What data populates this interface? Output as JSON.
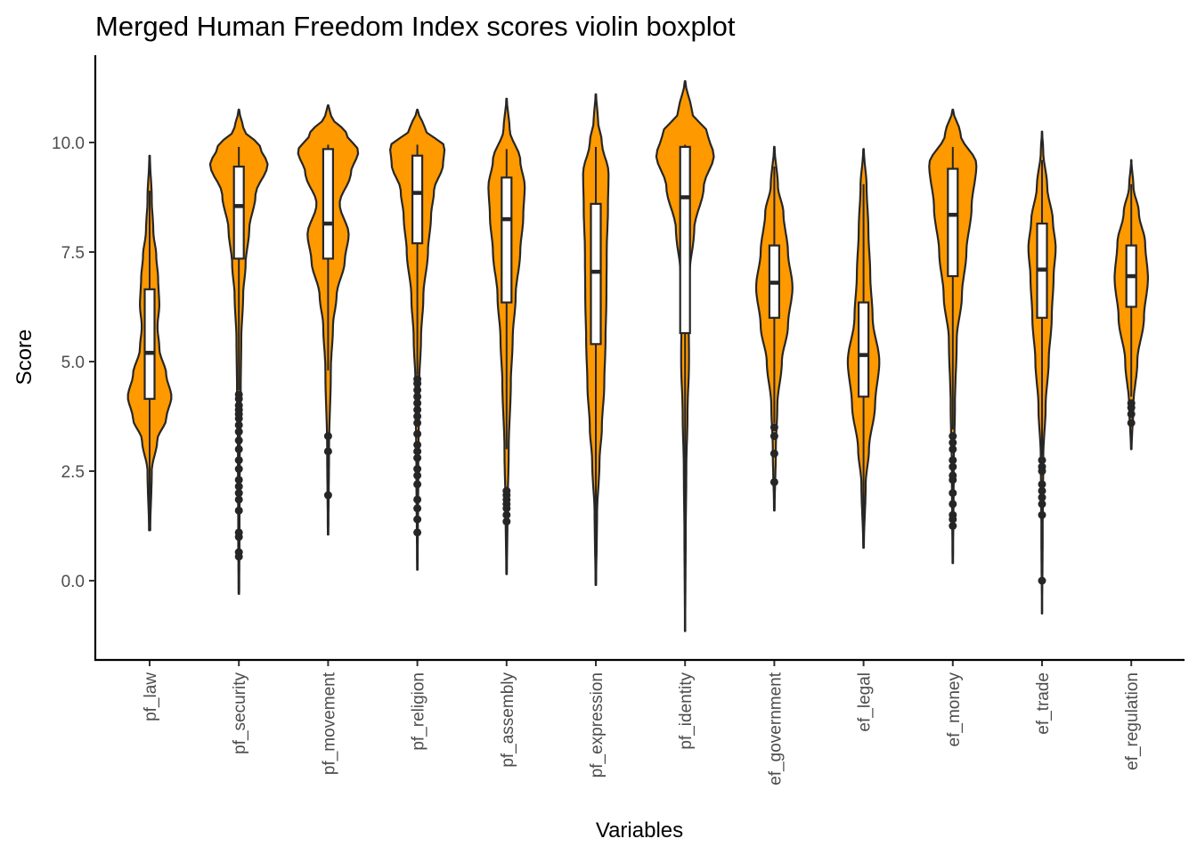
{
  "chart_data": {
    "type": "violin",
    "title": "Merged Human Freedom Index scores violin boxplot",
    "xlabel": "Variables",
    "ylabel": "Score",
    "ylim": [
      -1.75,
      12.0
    ],
    "yticks": [
      "0.0",
      "2.5",
      "5.0",
      "7.5",
      "10.0"
    ],
    "ytick_values": [
      0,
      2.5,
      5,
      7.5,
      10
    ],
    "grid": false,
    "legend": "none",
    "colors": {
      "fill": "#ff9900",
      "stroke": "#262626",
      "box_fill": "#ffffff"
    },
    "categories": [
      "pf_law",
      "pf_security",
      "pf_movement",
      "pf_religion",
      "pf_assembly",
      "pf_expression",
      "pf_identity",
      "ef_government",
      "ef_legal",
      "ef_money",
      "ef_trade",
      "ef_regulation"
    ],
    "series": [
      {
        "category": "pf_law",
        "range": [
          1.15,
          9.7
        ],
        "box": {
          "q1": 4.15,
          "median": 5.2,
          "q3": 6.65,
          "whisker_low": 1.15,
          "whisker_high": 8.9
        },
        "outliers": [],
        "density": [
          [
            1.15,
            0.02
          ],
          [
            2.5,
            0.07
          ],
          [
            3.2,
            0.25
          ],
          [
            3.7,
            0.55
          ],
          [
            4.2,
            0.72
          ],
          [
            4.7,
            0.55
          ],
          [
            5.3,
            0.32
          ],
          [
            5.8,
            0.26
          ],
          [
            6.3,
            0.32
          ],
          [
            6.9,
            0.28
          ],
          [
            7.4,
            0.22
          ],
          [
            8.0,
            0.12
          ],
          [
            8.7,
            0.07
          ],
          [
            9.7,
            0.01
          ]
        ]
      },
      {
        "category": "pf_security",
        "range": [
          -0.3,
          10.75
        ],
        "box": {
          "q1": 7.35,
          "median": 8.55,
          "q3": 9.45,
          "whisker_low": 4.35,
          "whisker_high": 9.9
        },
        "outliers": [
          4.25,
          4.15,
          4.0,
          3.9,
          3.8,
          3.7,
          3.55,
          3.4,
          3.2,
          3.0,
          2.75,
          2.55,
          2.3,
          2.15,
          2.0,
          1.85,
          1.6,
          1.1,
          1.0,
          0.65,
          0.55
        ],
        "density": [
          [
            -0.3,
            0.01
          ],
          [
            1.0,
            0.02
          ],
          [
            3.0,
            0.03
          ],
          [
            4.3,
            0.06
          ],
          [
            5.5,
            0.08
          ],
          [
            6.5,
            0.14
          ],
          [
            7.2,
            0.22
          ],
          [
            8.0,
            0.34
          ],
          [
            8.8,
            0.55
          ],
          [
            9.5,
            0.95
          ],
          [
            9.9,
            0.7
          ],
          [
            10.3,
            0.15
          ],
          [
            10.75,
            0.01
          ]
        ]
      },
      {
        "category": "pf_movement",
        "range": [
          1.05,
          10.85
        ],
        "box": {
          "q1": 7.35,
          "median": 8.15,
          "q3": 9.85,
          "whisker_low": 4.8,
          "whisker_high": 9.95
        },
        "outliers": [
          3.3,
          2.95,
          1.95
        ],
        "density": [
          [
            1.05,
            0.01
          ],
          [
            3.0,
            0.03
          ],
          [
            4.8,
            0.09
          ],
          [
            5.8,
            0.16
          ],
          [
            6.5,
            0.28
          ],
          [
            7.3,
            0.55
          ],
          [
            7.9,
            0.68
          ],
          [
            8.6,
            0.38
          ],
          [
            9.3,
            0.75
          ],
          [
            9.8,
            1.0
          ],
          [
            10.2,
            0.6
          ],
          [
            10.6,
            0.1
          ],
          [
            10.85,
            0.01
          ]
        ]
      },
      {
        "category": "pf_religion",
        "range": [
          0.25,
          10.75
        ],
        "box": {
          "q1": 7.7,
          "median": 8.85,
          "q3": 9.7,
          "whisker_low": 4.7,
          "whisker_high": 9.95
        },
        "outliers": [
          4.6,
          4.5,
          4.35,
          4.2,
          4.05,
          3.9,
          3.75,
          3.6,
          3.35,
          3.1,
          2.95,
          2.8,
          2.55,
          2.4,
          2.2,
          1.85,
          1.65,
          1.4,
          1.1
        ],
        "density": [
          [
            0.25,
            0.01
          ],
          [
            2.5,
            0.03
          ],
          [
            4.5,
            0.06
          ],
          [
            5.5,
            0.12
          ],
          [
            6.5,
            0.2
          ],
          [
            7.5,
            0.35
          ],
          [
            8.3,
            0.45
          ],
          [
            8.9,
            0.55
          ],
          [
            9.5,
            0.85
          ],
          [
            9.9,
            0.9
          ],
          [
            10.3,
            0.25
          ],
          [
            10.75,
            0.01
          ]
        ]
      },
      {
        "category": "pf_assembly",
        "range": [
          0.15,
          11.0
        ],
        "box": {
          "q1": 6.35,
          "median": 8.25,
          "q3": 9.2,
          "whisker_low": 3.0,
          "whisker_high": 9.85
        },
        "outliers": [
          2.05,
          1.95,
          1.85,
          1.75,
          1.65,
          1.5,
          1.35
        ],
        "density": [
          [
            0.15,
            0.01
          ],
          [
            1.5,
            0.03
          ],
          [
            3.0,
            0.07
          ],
          [
            4.5,
            0.14
          ],
          [
            5.5,
            0.2
          ],
          [
            6.5,
            0.3
          ],
          [
            7.5,
            0.45
          ],
          [
            8.3,
            0.55
          ],
          [
            9.0,
            0.6
          ],
          [
            9.6,
            0.45
          ],
          [
            10.3,
            0.1
          ],
          [
            11.0,
            0.01
          ]
        ]
      },
      {
        "category": "pf_expression",
        "range": [
          -0.1,
          11.1
        ],
        "box": {
          "q1": 5.4,
          "median": 7.05,
          "q3": 8.6,
          "whisker_low": 0.5,
          "whisker_high": 9.9
        },
        "outliers": [],
        "density": [
          [
            -0.1,
            0.01
          ],
          [
            1.5,
            0.04
          ],
          [
            2.7,
            0.12
          ],
          [
            3.5,
            0.2
          ],
          [
            4.5,
            0.28
          ],
          [
            5.5,
            0.32
          ],
          [
            6.5,
            0.35
          ],
          [
            7.5,
            0.36
          ],
          [
            8.5,
            0.4
          ],
          [
            9.3,
            0.42
          ],
          [
            10.0,
            0.2
          ],
          [
            10.5,
            0.07
          ],
          [
            11.1,
            0.01
          ]
        ]
      },
      {
        "category": "pf_identity",
        "range": [
          -1.15,
          11.4
        ],
        "box": {
          "q1": 5.65,
          "median": 8.75,
          "q3": 9.9,
          "whisker_low": 0.7,
          "whisker_high": 9.95
        },
        "outliers": [],
        "density": [
          [
            -1.15,
            0.005
          ],
          [
            1.0,
            0.02
          ],
          [
            2.5,
            0.04
          ],
          [
            3.8,
            0.08
          ],
          [
            5.0,
            0.13
          ],
          [
            6.0,
            0.12
          ],
          [
            7.0,
            0.15
          ],
          [
            8.0,
            0.3
          ],
          [
            9.0,
            0.62
          ],
          [
            9.7,
            0.95
          ],
          [
            10.2,
            0.75
          ],
          [
            10.7,
            0.22
          ],
          [
            11.4,
            0.01
          ]
        ]
      },
      {
        "category": "ef_government",
        "range": [
          1.6,
          9.9
        ],
        "box": {
          "q1": 6.0,
          "median": 6.8,
          "q3": 7.65,
          "whisker_low": 3.6,
          "whisker_high": 9.45
        },
        "outliers": [
          3.5,
          3.3,
          2.9,
          2.25
        ],
        "density": [
          [
            1.6,
            0.01
          ],
          [
            3.0,
            0.05
          ],
          [
            4.0,
            0.1
          ],
          [
            5.0,
            0.25
          ],
          [
            5.8,
            0.45
          ],
          [
            6.7,
            0.6
          ],
          [
            7.5,
            0.45
          ],
          [
            8.4,
            0.3
          ],
          [
            9.0,
            0.12
          ],
          [
            9.9,
            0.01
          ]
        ]
      },
      {
        "category": "ef_legal",
        "range": [
          0.75,
          9.85
        ],
        "box": {
          "q1": 4.2,
          "median": 5.15,
          "q3": 6.35,
          "whisker_low": 0.85,
          "whisker_high": 9.05
        },
        "outliers": [],
        "density": [
          [
            0.75,
            0.01
          ],
          [
            2.2,
            0.07
          ],
          [
            3.0,
            0.18
          ],
          [
            4.0,
            0.38
          ],
          [
            5.0,
            0.52
          ],
          [
            6.0,
            0.3
          ],
          [
            7.0,
            0.22
          ],
          [
            8.0,
            0.16
          ],
          [
            9.0,
            0.1
          ],
          [
            9.85,
            0.01
          ]
        ]
      },
      {
        "category": "ef_money",
        "range": [
          0.4,
          10.75
        ],
        "box": {
          "q1": 6.95,
          "median": 8.35,
          "q3": 9.4,
          "whisker_low": 3.45,
          "whisker_high": 9.9
        },
        "outliers": [
          3.3,
          3.15,
          3.0,
          2.75,
          2.6,
          2.4,
          2.3,
          2.0,
          1.75,
          1.5,
          1.4,
          1.25
        ],
        "density": [
          [
            0.4,
            0.01
          ],
          [
            2.5,
            0.03
          ],
          [
            4.0,
            0.07
          ],
          [
            5.5,
            0.13
          ],
          [
            6.5,
            0.3
          ],
          [
            7.5,
            0.45
          ],
          [
            8.5,
            0.62
          ],
          [
            9.5,
            0.78
          ],
          [
            10.2,
            0.25
          ],
          [
            10.75,
            0.01
          ]
        ]
      },
      {
        "category": "ef_trade",
        "range": [
          -0.75,
          10.25
        ],
        "box": {
          "q1": 6.0,
          "median": 7.1,
          "q3": 8.15,
          "whisker_low": 2.85,
          "whisker_high": 9.6
        },
        "outliers": [
          2.75,
          2.6,
          2.5,
          2.2,
          2.05,
          1.9,
          1.75,
          1.5,
          0.0
        ],
        "density": [
          [
            -0.75,
            0.005
          ],
          [
            1.0,
            0.02
          ],
          [
            2.8,
            0.04
          ],
          [
            4.0,
            0.12
          ],
          [
            5.0,
            0.22
          ],
          [
            6.0,
            0.32
          ],
          [
            6.9,
            0.38
          ],
          [
            7.6,
            0.45
          ],
          [
            8.2,
            0.36
          ],
          [
            9.0,
            0.17
          ],
          [
            9.8,
            0.04
          ],
          [
            10.25,
            0.005
          ]
        ]
      },
      {
        "category": "ef_regulation",
        "range": [
          3.0,
          9.6
        ],
        "box": {
          "q1": 6.25,
          "median": 6.95,
          "q3": 7.65,
          "whisker_low": 4.2,
          "whisker_high": 9.05
        },
        "outliers": [
          4.05,
          3.95,
          3.8,
          3.6
        ],
        "density": [
          [
            3.0,
            0.01
          ],
          [
            4.0,
            0.07
          ],
          [
            5.0,
            0.2
          ],
          [
            6.0,
            0.42
          ],
          [
            6.9,
            0.55
          ],
          [
            7.7,
            0.46
          ],
          [
            8.4,
            0.25
          ],
          [
            9.0,
            0.07
          ],
          [
            9.6,
            0.005
          ]
        ]
      }
    ]
  }
}
